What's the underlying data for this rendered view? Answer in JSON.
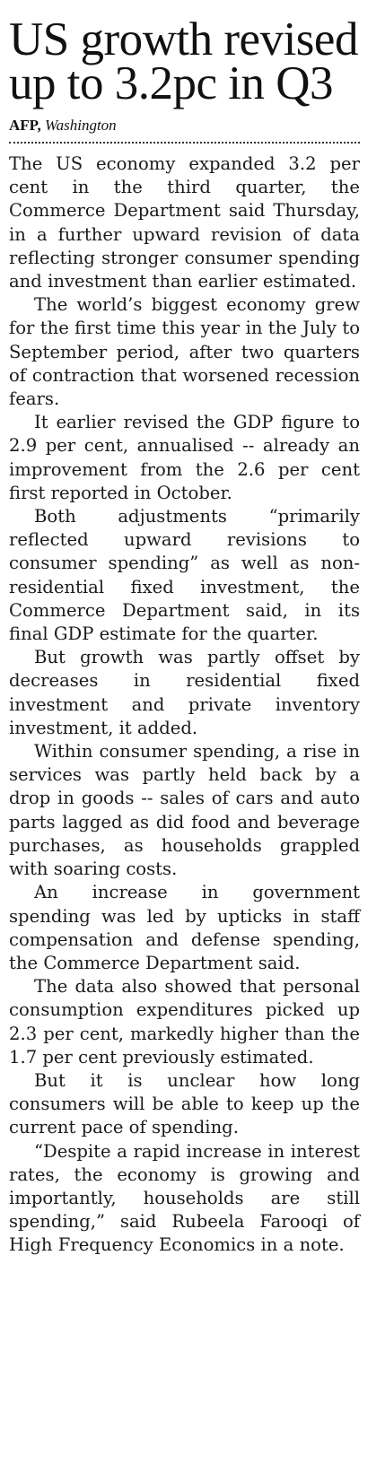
{
  "article": {
    "headline": "US growth revised up to 3.2pc in Q3",
    "byline": {
      "agency": "AFP,",
      "city": "Washington"
    },
    "paragraphs": [
      "The US economy expanded 3.2 per cent in the third quarter, the Commerce Department said Thursday, in a further upward revision of data reflecting stronger consumer spending and investment than earlier estimated.",
      "The world’s biggest economy grew for the first time this year in the July to September period, after two quarters of contraction that worsened recession fears.",
      "It earlier revised the GDP figure to 2.9 per cent, annualised -- already an improvement from the 2.6 per cent first reported in October.",
      "Both adjustments “primarily reflected upward revisions to consumer spending” as well as non-residential fixed investment, the Commerce Department said, in its final GDP estimate for the quarter.",
      "But growth was partly offset by decreases in residential fixed investment and private inventory investment, it added.",
      "Within consumer spending, a rise in services was partly held back by a drop in goods -- sales of cars and auto parts lagged as did food and beverage purchases, as households grappled with soaring costs.",
      "An increase in government spending was led by upticks in staff compensation and defense spending, the Commerce Department said.",
      "The data also showed that personal consumption expenditures picked up 2.3 per cent, markedly higher than the 1.7 per cent previously estimated.",
      "But it is unclear how long consumers will be able to keep up the current pace of spending.",
      "“Despite a rapid increase in interest rates, the economy is growing and importantly, households are still spending,” said Rubeela Farooqi of High Frequency Economics in a note."
    ]
  }
}
